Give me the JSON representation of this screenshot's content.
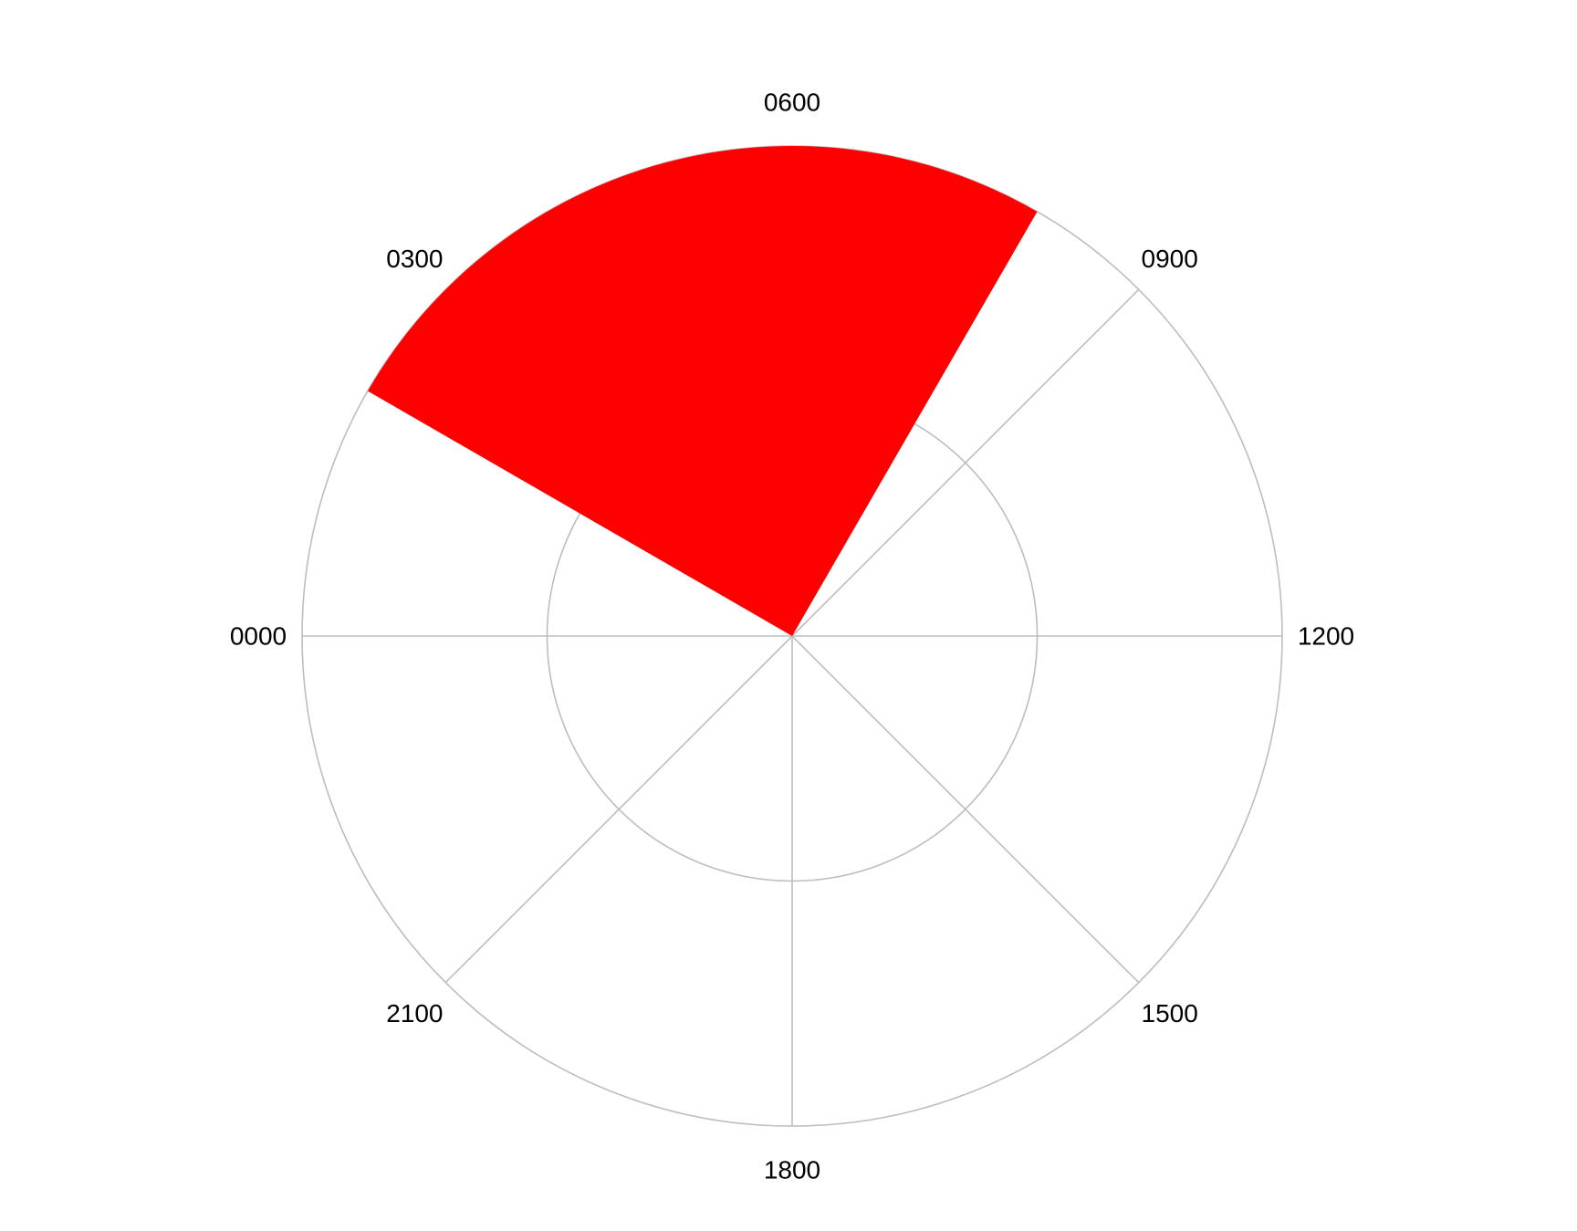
{
  "chart_data": {
    "type": "polar-bar",
    "title": "",
    "theta_ticks": [
      {
        "label": "0000",
        "value": 0
      },
      {
        "label": "0300",
        "value": 3
      },
      {
        "label": "0600",
        "value": 6
      },
      {
        "label": "0900",
        "value": 9
      },
      {
        "label": "1200",
        "value": 12
      },
      {
        "label": "1500",
        "value": 15
      },
      {
        "label": "1800",
        "value": 18
      },
      {
        "label": "2100",
        "value": 21
      }
    ],
    "theta_range": [
      0,
      24
    ],
    "theta_direction": "clockwise",
    "theta_zero_location": "left",
    "radial_range": [
      0,
      1
    ],
    "radial_gridlines": [
      0.5,
      1.0
    ],
    "radial_tick_labels_visible": false,
    "grid": true,
    "colors": {
      "bar": "#ff0000",
      "grid": "#bdbdbd",
      "background": "#ffffff"
    },
    "bars": [
      {
        "theta_start": 2,
        "theta_end": 8,
        "value": 1.0
      }
    ]
  }
}
